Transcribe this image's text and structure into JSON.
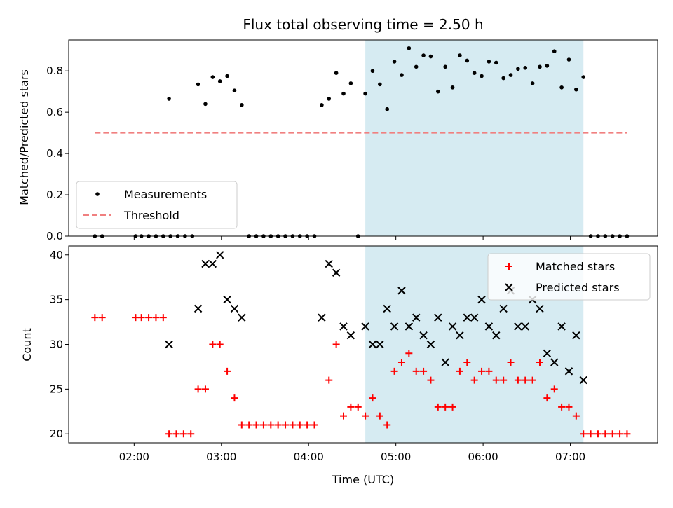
{
  "chart_data": [
    {
      "type": "scatter",
      "title": "Flux total observing time = 2.50 h",
      "xlabel": "",
      "ylabel": "Matched/Predicted stars",
      "xlim": [
        "01:15",
        "08:00"
      ],
      "ylim": [
        0,
        0.95
      ],
      "yticks": [
        "0.0",
        "0.2",
        "0.4",
        "0.6",
        "0.8"
      ],
      "highlight_span": {
        "from": "04:39",
        "to": "07:09",
        "color": "#add8e6"
      },
      "legend_position": "lower-left",
      "series": [
        {
          "name": "Measurements",
          "color": "#000000",
          "marker": "dot",
          "points": [
            [
              "01:33",
              0
            ],
            [
              "01:38",
              0
            ],
            [
              "02:01",
              0
            ],
            [
              "02:05",
              0
            ],
            [
              "02:10",
              0
            ],
            [
              "02:15",
              0
            ],
            [
              "02:20",
              0
            ],
            [
              "02:25",
              0
            ],
            [
              "02:24",
              0.665
            ],
            [
              "02:30",
              0
            ],
            [
              "02:35",
              0
            ],
            [
              "02:40",
              0
            ],
            [
              "02:44",
              0.735
            ],
            [
              "02:49",
              0.64
            ],
            [
              "02:54",
              0.77
            ],
            [
              "02:59",
              0.75
            ],
            [
              "03:04",
              0.775
            ],
            [
              "03:09",
              0.705
            ],
            [
              "03:14",
              0.635
            ],
            [
              "03:19",
              0
            ],
            [
              "03:24",
              0
            ],
            [
              "03:29",
              0
            ],
            [
              "03:34",
              0
            ],
            [
              "03:39",
              0
            ],
            [
              "03:44",
              0
            ],
            [
              "03:49",
              0
            ],
            [
              "03:54",
              0
            ],
            [
              "03:59",
              0
            ],
            [
              "04:04",
              0
            ],
            [
              "04:09",
              0.635
            ],
            [
              "04:14",
              0.665
            ],
            [
              "04:19",
              0.79
            ],
            [
              "04:24",
              0.69
            ],
            [
              "04:29",
              0.74
            ],
            [
              "04:34",
              0
            ],
            [
              "04:39",
              0.69
            ],
            [
              "04:44",
              0.8
            ],
            [
              "04:49",
              0.735
            ],
            [
              "04:54",
              0.615
            ],
            [
              "04:59",
              0.845
            ],
            [
              "05:04",
              0.78
            ],
            [
              "05:09",
              0.91
            ],
            [
              "05:14",
              0.82
            ],
            [
              "05:19",
              0.875
            ],
            [
              "05:24",
              0.87
            ],
            [
              "05:29",
              0.7
            ],
            [
              "05:34",
              0.82
            ],
            [
              "05:39",
              0.72
            ],
            [
              "05:44",
              0.875
            ],
            [
              "05:49",
              0.85
            ],
            [
              "05:54",
              0.79
            ],
            [
              "05:59",
              0.775
            ],
            [
              "06:04",
              0.845
            ],
            [
              "06:09",
              0.84
            ],
            [
              "06:14",
              0.765
            ],
            [
              "06:19",
              0.78
            ],
            [
              "06:24",
              0.81
            ],
            [
              "06:29",
              0.815
            ],
            [
              "06:34",
              0.74
            ],
            [
              "06:39",
              0.82
            ],
            [
              "06:44",
              0.825
            ],
            [
              "06:49",
              0.895
            ],
            [
              "06:54",
              0.72
            ],
            [
              "06:59",
              0.855
            ],
            [
              "07:04",
              0.71
            ],
            [
              "07:09",
              0.77
            ],
            [
              "07:14",
              0
            ],
            [
              "07:19",
              0
            ],
            [
              "07:24",
              0
            ],
            [
              "07:29",
              0
            ],
            [
              "07:34",
              0
            ],
            [
              "07:39",
              0
            ]
          ]
        },
        {
          "name": "Threshold",
          "color": "#f08080",
          "line": "dashed",
          "points": [
            [
              "01:33",
              0.5
            ],
            [
              "07:39",
              0.5
            ]
          ]
        }
      ]
    },
    {
      "type": "scatter",
      "title": "",
      "xlabel": "Time (UTC)",
      "ylabel": "Count",
      "xlim": [
        "01:15",
        "08:00"
      ],
      "ylim": [
        19,
        41
      ],
      "xticks": [
        "02:00",
        "03:00",
        "04:00",
        "05:00",
        "06:00",
        "07:00"
      ],
      "yticks": [
        "20",
        "25",
        "30",
        "35",
        "40"
      ],
      "highlight_span": {
        "from": "04:39",
        "to": "07:09",
        "color": "#add8e6"
      },
      "legend_position": "upper-right",
      "series": [
        {
          "name": "Matched stars",
          "color": "#ff0000",
          "marker": "plus",
          "points": [
            [
              "01:33",
              33
            ],
            [
              "01:38",
              33
            ],
            [
              "02:01",
              33
            ],
            [
              "02:05",
              33
            ],
            [
              "02:10",
              33
            ],
            [
              "02:15",
              33
            ],
            [
              "02:20",
              33
            ],
            [
              "02:24",
              20
            ],
            [
              "02:29",
              20
            ],
            [
              "02:34",
              20
            ],
            [
              "02:39",
              20
            ],
            [
              "02:44",
              25
            ],
            [
              "02:49",
              25
            ],
            [
              "02:54",
              30
            ],
            [
              "02:59",
              30
            ],
            [
              "03:04",
              27
            ],
            [
              "03:09",
              24
            ],
            [
              "03:14",
              21
            ],
            [
              "03:19",
              21
            ],
            [
              "03:24",
              21
            ],
            [
              "03:29",
              21
            ],
            [
              "03:34",
              21
            ],
            [
              "03:39",
              21
            ],
            [
              "03:44",
              21
            ],
            [
              "03:49",
              21
            ],
            [
              "03:54",
              21
            ],
            [
              "03:59",
              21
            ],
            [
              "04:04",
              21
            ],
            [
              "04:14",
              26
            ],
            [
              "04:19",
              30
            ],
            [
              "04:24",
              22
            ],
            [
              "04:29",
              23
            ],
            [
              "04:34",
              23
            ],
            [
              "04:39",
              22
            ],
            [
              "04:44",
              24
            ],
            [
              "04:49",
              22
            ],
            [
              "04:54",
              21
            ],
            [
              "04:59",
              27
            ],
            [
              "05:04",
              28
            ],
            [
              "05:09",
              29
            ],
            [
              "05:14",
              27
            ],
            [
              "05:19",
              27
            ],
            [
              "05:24",
              26
            ],
            [
              "05:29",
              23
            ],
            [
              "05:34",
              23
            ],
            [
              "05:39",
              23
            ],
            [
              "05:44",
              27
            ],
            [
              "05:49",
              28
            ],
            [
              "05:54",
              26
            ],
            [
              "05:59",
              27
            ],
            [
              "06:04",
              27
            ],
            [
              "06:09",
              26
            ],
            [
              "06:14",
              26
            ],
            [
              "06:19",
              28
            ],
            [
              "06:24",
              26
            ],
            [
              "06:29",
              26
            ],
            [
              "06:34",
              26
            ],
            [
              "06:39",
              28
            ],
            [
              "06:44",
              24
            ],
            [
              "06:49",
              25
            ],
            [
              "06:54",
              23
            ],
            [
              "06:59",
              23
            ],
            [
              "07:04",
              22
            ],
            [
              "07:09",
              20
            ],
            [
              "07:14",
              20
            ],
            [
              "07:19",
              20
            ],
            [
              "07:24",
              20
            ],
            [
              "07:29",
              20
            ],
            [
              "07:34",
              20
            ],
            [
              "07:39",
              20
            ]
          ]
        },
        {
          "name": "Predicted stars",
          "color": "#000000",
          "marker": "x",
          "points": [
            [
              "02:24",
              30
            ],
            [
              "02:44",
              34
            ],
            [
              "02:49",
              39
            ],
            [
              "02:54",
              39
            ],
            [
              "02:59",
              40
            ],
            [
              "03:04",
              35
            ],
            [
              "03:09",
              34
            ],
            [
              "03:14",
              33
            ],
            [
              "04:09",
              33
            ],
            [
              "04:14",
              39
            ],
            [
              "04:19",
              38
            ],
            [
              "04:24",
              32
            ],
            [
              "04:29",
              31
            ],
            [
              "04:39",
              32
            ],
            [
              "04:44",
              30
            ],
            [
              "04:49",
              30
            ],
            [
              "04:54",
              34
            ],
            [
              "04:59",
              32
            ],
            [
              "05:04",
              36
            ],
            [
              "05:09",
              32
            ],
            [
              "05:14",
              33
            ],
            [
              "05:19",
              31
            ],
            [
              "05:24",
              30
            ],
            [
              "05:29",
              33
            ],
            [
              "05:34",
              28
            ],
            [
              "05:39",
              32
            ],
            [
              "05:44",
              31
            ],
            [
              "05:49",
              33
            ],
            [
              "05:54",
              33
            ],
            [
              "05:59",
              35
            ],
            [
              "06:04",
              32
            ],
            [
              "06:09",
              31
            ],
            [
              "06:14",
              34
            ],
            [
              "06:19",
              36
            ],
            [
              "06:24",
              32
            ],
            [
              "06:29",
              32
            ],
            [
              "06:34",
              35
            ],
            [
              "06:39",
              34
            ],
            [
              "06:44",
              29
            ],
            [
              "06:49",
              28
            ],
            [
              "06:54",
              32
            ],
            [
              "06:59",
              27
            ],
            [
              "07:04",
              31
            ],
            [
              "07:09",
              26
            ]
          ]
        }
      ]
    }
  ]
}
